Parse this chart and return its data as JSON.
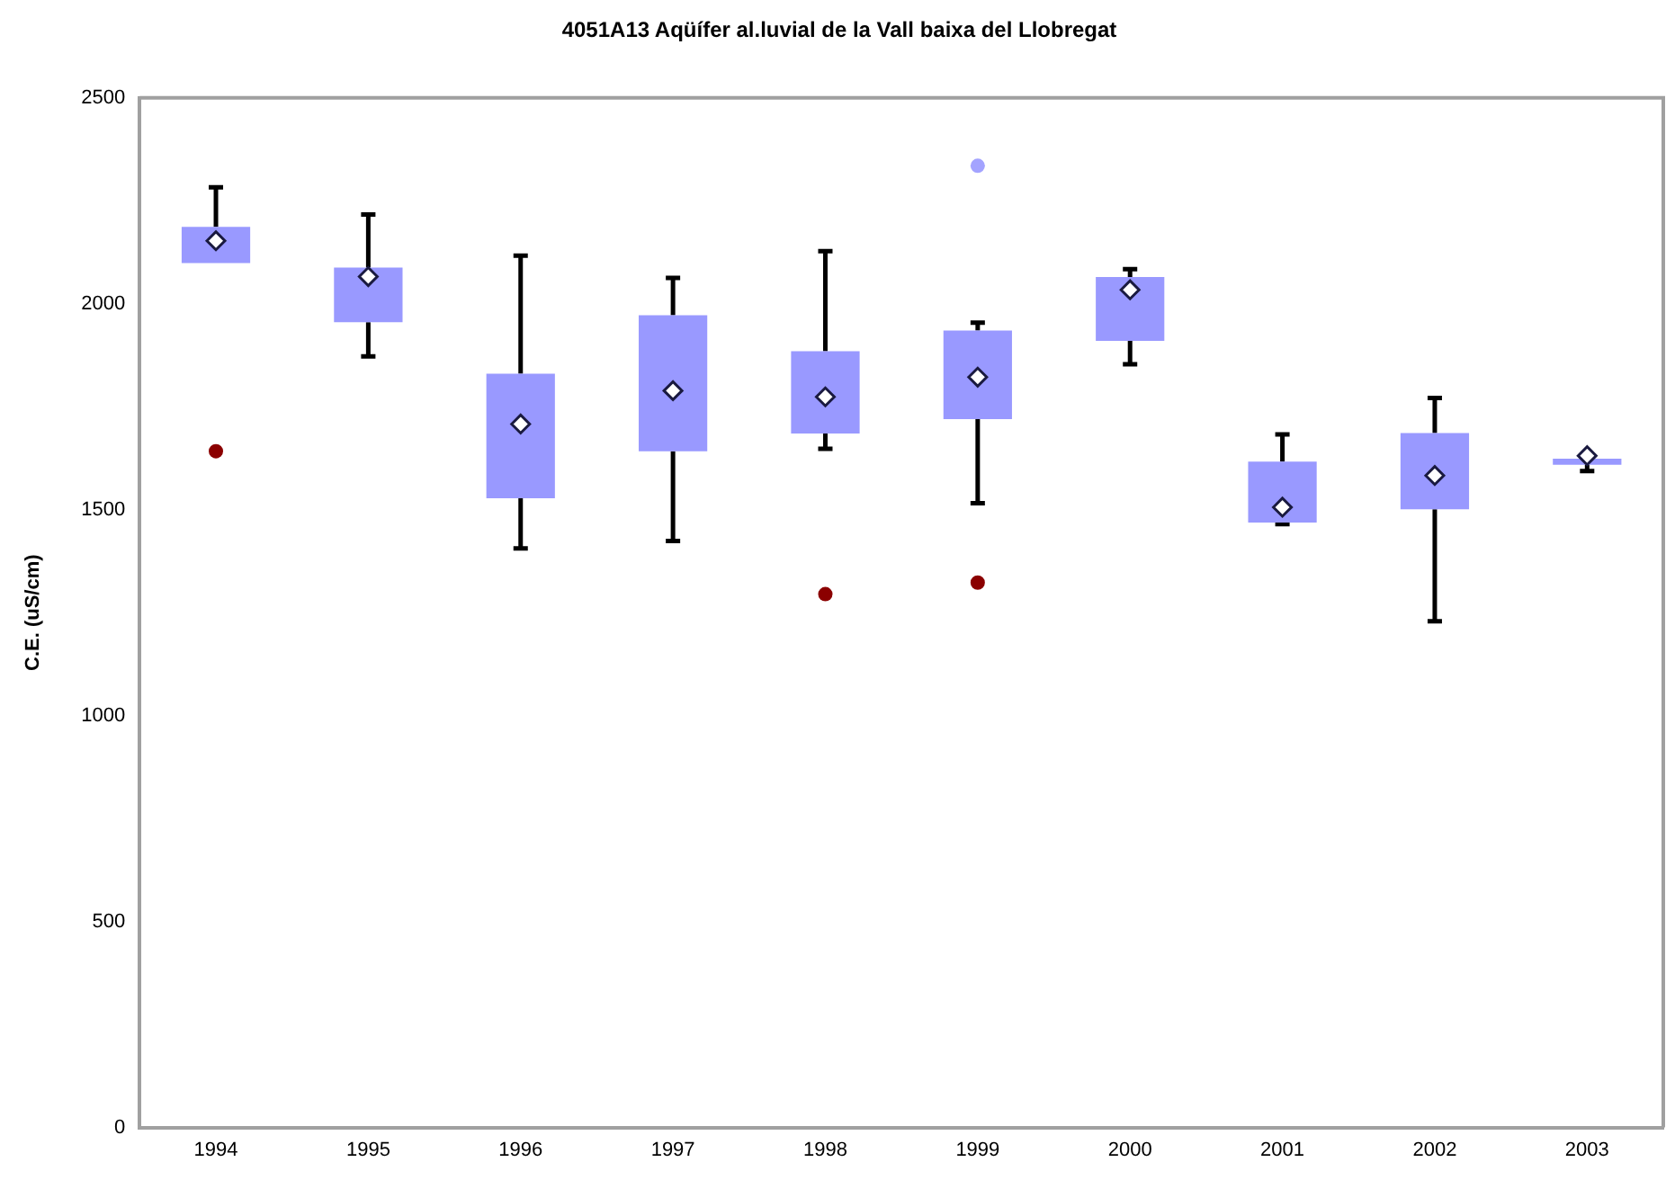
{
  "chart_data": {
    "type": "box",
    "title": "4051A13 Aqüífer al.luvial de la Vall baixa del Llobregat",
    "ylabel": "C.E. (uS/cm)",
    "categories": [
      "1994",
      "1995",
      "1996",
      "1997",
      "1998",
      "1999",
      "2000",
      "2001",
      "2002",
      "2003"
    ],
    "ylim": [
      0,
      2500
    ],
    "yticks": [
      0,
      500,
      1000,
      1500,
      2000,
      2500
    ],
    "grid": false,
    "legend": false,
    "series": [
      {
        "color": "#9999ff",
        "boxes": [
          {
            "low": 2099,
            "q1": 2099,
            "q3": 2187,
            "high": 2283,
            "mean": 2153
          },
          {
            "low": 1872,
            "q1": 1955,
            "q3": 2088,
            "high": 2217,
            "mean": 2066
          },
          {
            "low": 1406,
            "q1": 1528,
            "q3": 1830,
            "high": 2117,
            "mean": 1708
          },
          {
            "low": 1424,
            "q1": 1642,
            "q3": 1972,
            "high": 2063,
            "mean": 1789
          },
          {
            "low": 1648,
            "q1": 1685,
            "q3": 1885,
            "high": 2128,
            "mean": 1774
          },
          {
            "low": 1516,
            "q1": 1720,
            "q3": 1935,
            "high": 1954,
            "mean": 1822
          },
          {
            "low": 1853,
            "q1": 1910,
            "q3": 2065,
            "high": 2084,
            "mean": 2034
          },
          {
            "low": 1465,
            "q1": 1469,
            "q3": 1617,
            "high": 1683,
            "mean": 1506
          },
          {
            "low": 1229,
            "q1": 1501,
            "q3": 1686,
            "high": 1771,
            "mean": 1583
          },
          {
            "low": 1594,
            "q1": 1609,
            "q3": 1624,
            "high": 1624,
            "mean": 1631
          }
        ]
      },
      {
        "type": "scatter",
        "color": "#8b0000",
        "values": [
          1642,
          null,
          null,
          null,
          1295,
          1323,
          null,
          null,
          null,
          null
        ]
      },
      {
        "type": "scatter",
        "color": "#a3a3ff",
        "values": [
          null,
          null,
          null,
          null,
          null,
          2335,
          null,
          null,
          null,
          null
        ]
      }
    ]
  }
}
